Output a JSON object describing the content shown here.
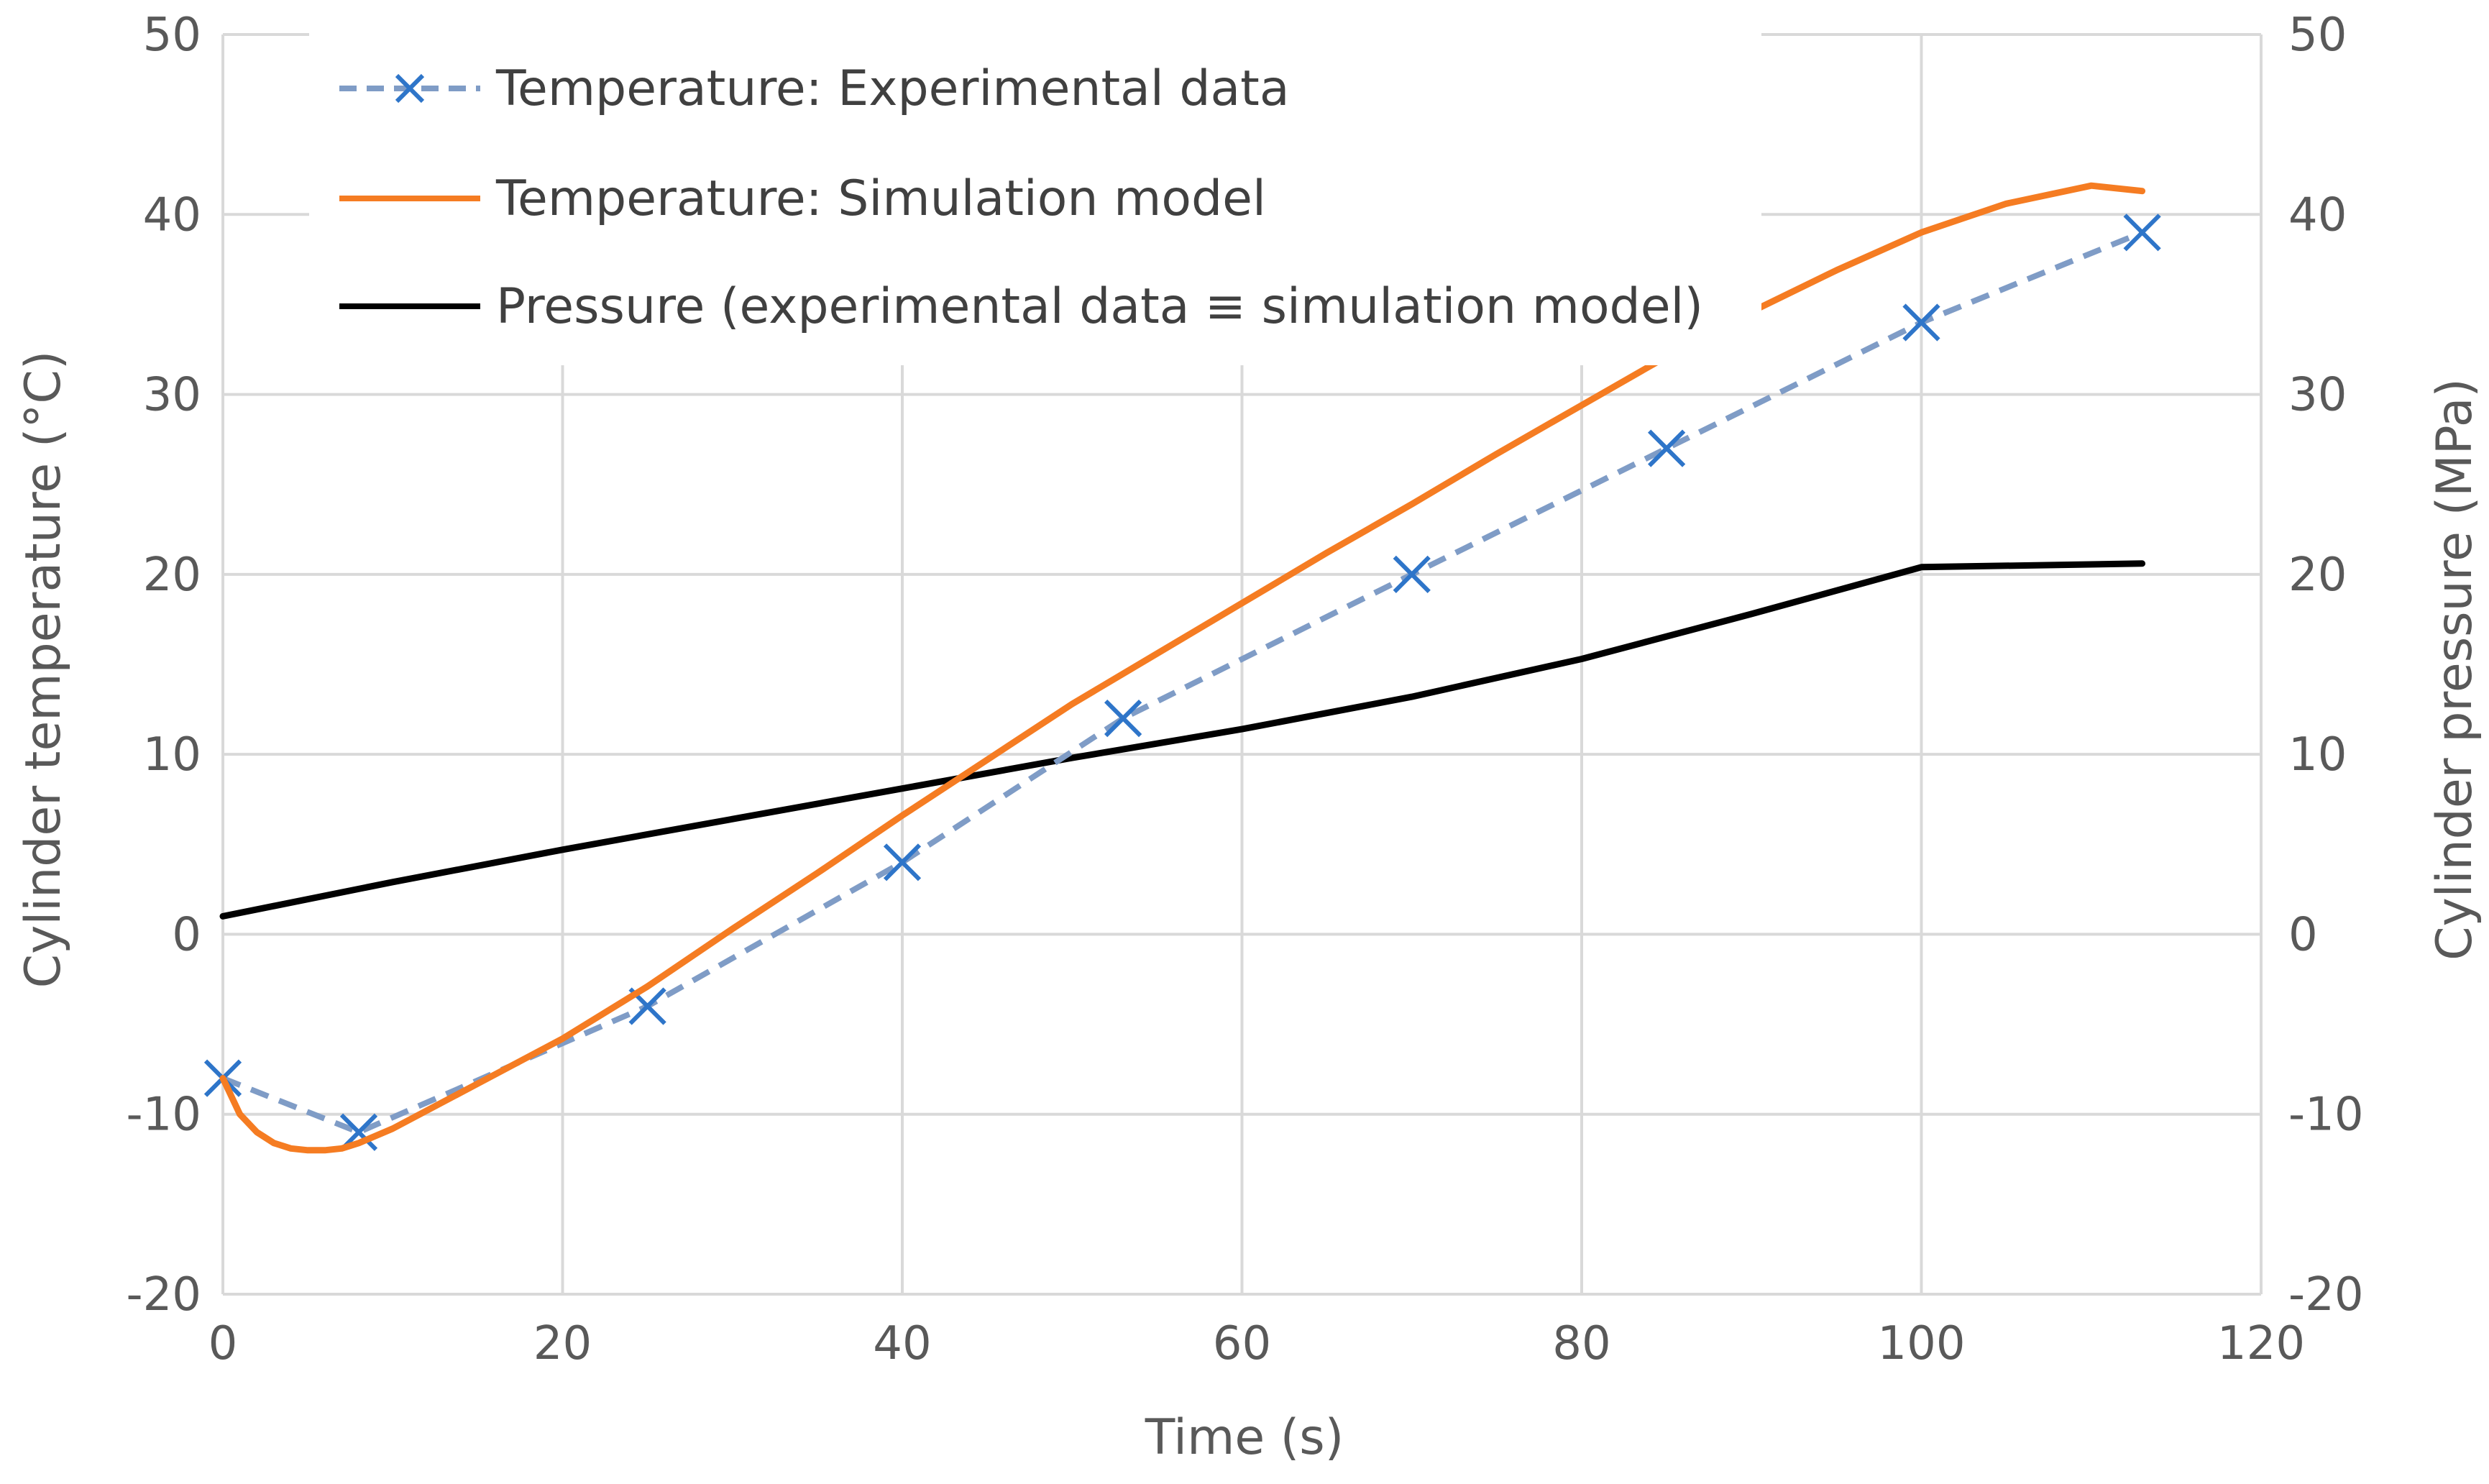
{
  "chart_data": {
    "type": "line",
    "title": "",
    "xlabel": "Time (s)",
    "ylabel_left": "Cylinder temperature (°C)",
    "ylabel_right": "Cylinder pressure (MPa)",
    "xlim": [
      0,
      120
    ],
    "ylim_left": [
      -20,
      50
    ],
    "ylim_right": [
      -20,
      50
    ],
    "x_ticks": [
      0,
      20,
      40,
      60,
      80,
      100,
      120
    ],
    "y_ticks_left": [
      -20,
      -10,
      0,
      10,
      20,
      30,
      40,
      50
    ],
    "y_ticks_right": [
      -20,
      -10,
      0,
      10,
      20,
      30,
      40,
      50
    ],
    "grid": true,
    "legend_position": "top-left",
    "series": [
      {
        "name": "Temperature: Experimental data",
        "axis": "left",
        "color": "#7f9cc6",
        "marker_color": "#2e75c9",
        "style": "dashed",
        "marker": "x",
        "x": [
          0,
          8,
          25,
          40,
          53,
          70,
          85,
          100,
          113
        ],
        "y": [
          -8,
          -11,
          -4,
          4,
          12,
          20,
          27,
          34,
          39
        ]
      },
      {
        "name": "Temperature: Simulation model",
        "axis": "left",
        "color": "#f57c22",
        "style": "solid",
        "marker": "none",
        "x": [
          0,
          1,
          2,
          3,
          4,
          5,
          6,
          7,
          8,
          10,
          12,
          15,
          20,
          25,
          30,
          35,
          40,
          45,
          50,
          55,
          60,
          65,
          70,
          75,
          80,
          85,
          90,
          95,
          100,
          105,
          110,
          113
        ],
        "y": [
          -8,
          -10,
          -11,
          -11.6,
          -11.9,
          -12,
          -12,
          -11.9,
          -11.6,
          -10.8,
          -9.8,
          -8.3,
          -5.8,
          -2.9,
          0.3,
          3.4,
          6.6,
          9.7,
          12.8,
          15.6,
          18.4,
          21.2,
          23.9,
          26.7,
          29.4,
          32.1,
          34.6,
          36.9,
          39.0,
          40.6,
          41.6,
          41.3
        ]
      },
      {
        "name": "Pressure (experimental data ≡ simulation model)",
        "axis": "right",
        "color": "#000000",
        "style": "solid",
        "marker": "none",
        "x": [
          0,
          10,
          20,
          30,
          40,
          50,
          60,
          70,
          80,
          90,
          100,
          113
        ],
        "y": [
          1,
          2.9,
          4.7,
          6.4,
          8.1,
          9.8,
          11.4,
          13.2,
          15.3,
          17.8,
          20.4,
          20.6
        ]
      }
    ]
  }
}
